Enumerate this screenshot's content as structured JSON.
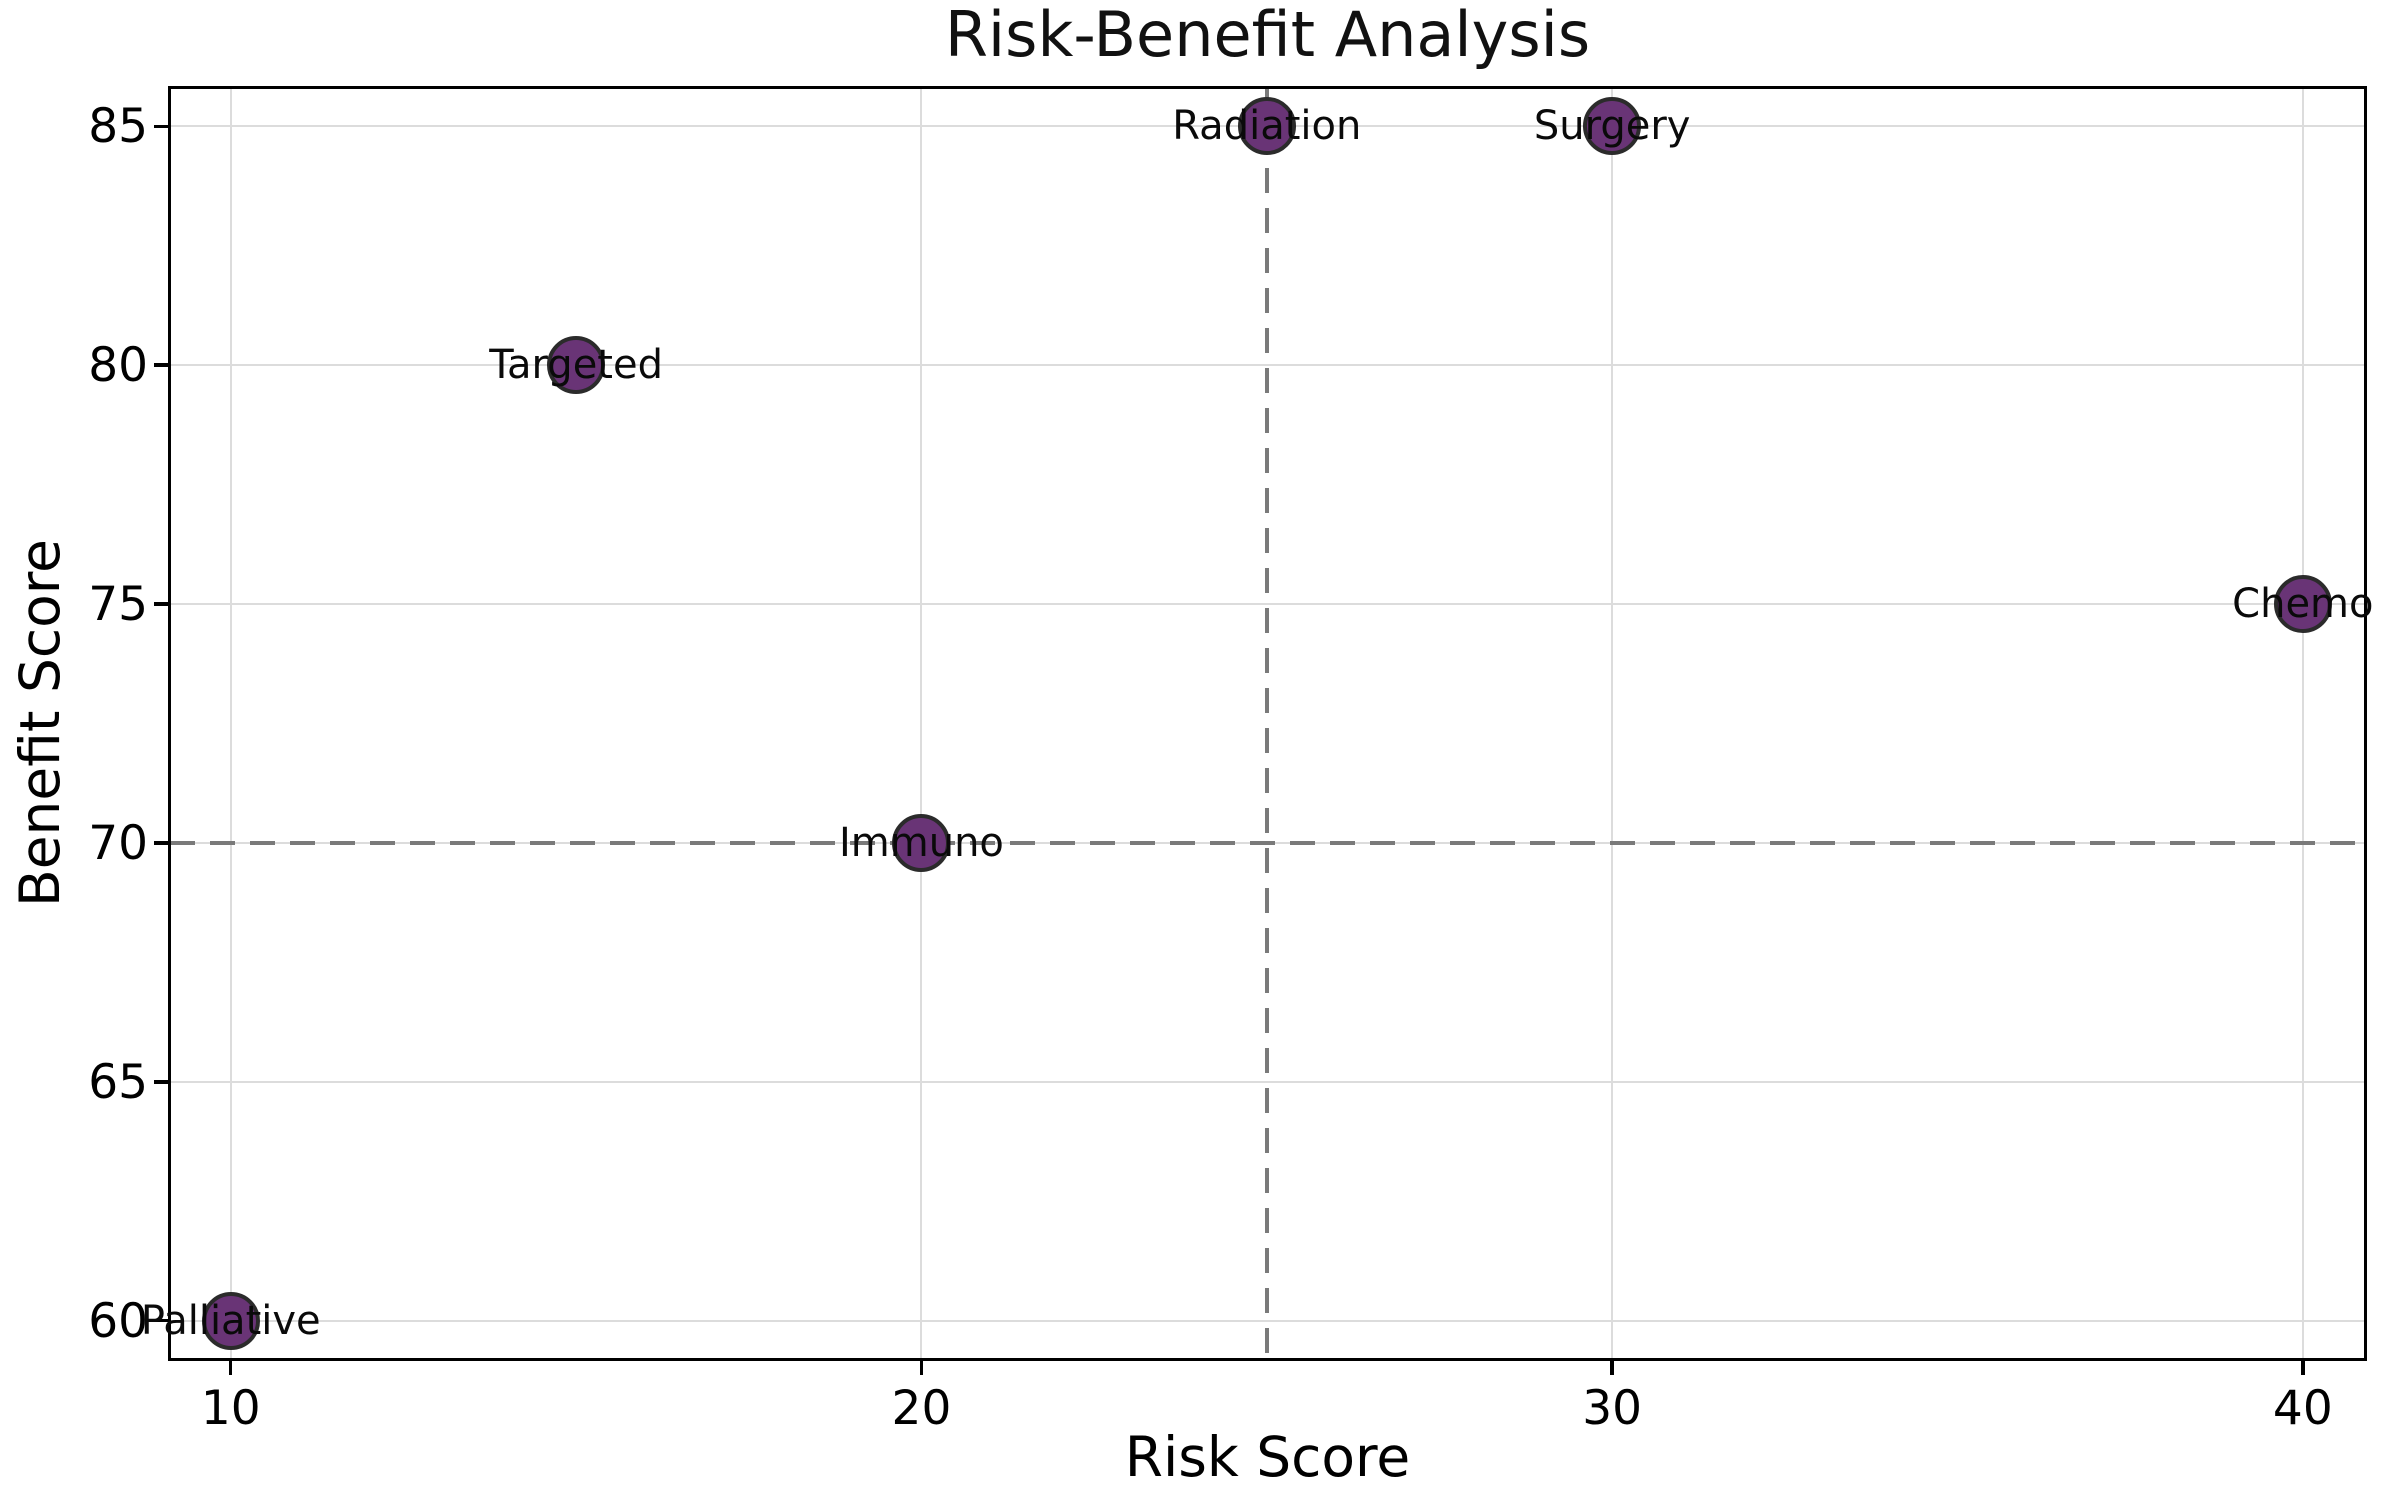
{
  "chart_data": {
    "type": "scatter",
    "title": "Risk-Benefit Analysis",
    "xlabel": "Risk Score",
    "ylabel": "Benefit Score",
    "xlim": [
      9.12,
      40.9
    ],
    "ylim": [
      59.2,
      85.8
    ],
    "xticks": [
      10,
      20,
      30,
      40
    ],
    "yticks": [
      60,
      65,
      70,
      75,
      80,
      85
    ],
    "grid": true,
    "legend": "none",
    "points": [
      {
        "label": "Palliative",
        "x": 10,
        "y": 60
      },
      {
        "label": "Targeted",
        "x": 15,
        "y": 80
      },
      {
        "label": "Immuno",
        "x": 20,
        "y": 70
      },
      {
        "label": "Radiation",
        "x": 25,
        "y": 85
      },
      {
        "label": "Surgery",
        "x": 30,
        "y": 85
      },
      {
        "label": "Chemo",
        "x": 40,
        "y": 75
      }
    ],
    "reference_lines": {
      "vline_x": 25,
      "hline_y": 70,
      "style": "dashed"
    },
    "colors": {
      "marker_fill": "#693476",
      "marker_edge": "#2b2b2b",
      "grid": "#dcdcdc",
      "dash": "#7a7a7a",
      "spine": "#000000",
      "text": "#000000"
    }
  }
}
